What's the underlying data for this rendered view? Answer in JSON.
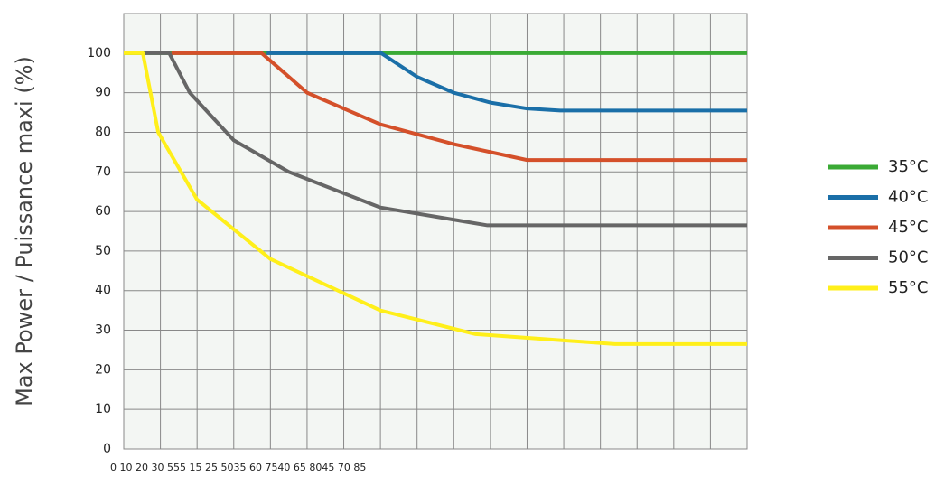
{
  "chart_data": {
    "type": "line",
    "y_label": "Max Power / Puissance maxi (%)",
    "x_tick_text": "0  10 20 30 555 15 25 5035 60 7540 65 8045 70 85",
    "xlim": [
      0,
      85
    ],
    "xticks": [
      0,
      5,
      10,
      15,
      20,
      25,
      30,
      35,
      40,
      45,
      50,
      55,
      60,
      65,
      70,
      75,
      80,
      85
    ],
    "ylim": [
      0,
      110
    ],
    "yticks": [
      0,
      10,
      20,
      30,
      40,
      50,
      60,
      70,
      80,
      90,
      100
    ],
    "grid": true,
    "series": [
      {
        "name": "35°C",
        "color": "#3aaa35",
        "x": [
          0,
          85
        ],
        "values": [
          100,
          100
        ]
      },
      {
        "name": "40°C",
        "color": "#1a6fa8",
        "x": [
          19.5,
          35.1,
          40,
          45,
          50,
          55,
          59.5,
          85
        ],
        "values": [
          100,
          100,
          94,
          90,
          87.5,
          86,
          85.5,
          85.5
        ]
      },
      {
        "name": "45°C",
        "color": "#d4502a",
        "x": [
          6.5,
          18.8,
          25,
          35,
          45,
          55,
          85
        ],
        "values": [
          100,
          100,
          90,
          82,
          77,
          73,
          73
        ]
      },
      {
        "name": "50°C",
        "color": "#666666",
        "x": [
          2.8,
          6.2,
          9,
          15,
          22.5,
          35,
          49.6,
          85
        ],
        "values": [
          100,
          100,
          90,
          78,
          70,
          61,
          56.5,
          56.5
        ]
      },
      {
        "name": "55°C",
        "color": "#ffef1a",
        "x": [
          0,
          2.6,
          4.7,
          10,
          20,
          35,
          48,
          67,
          85
        ],
        "values": [
          100,
          100,
          80,
          63,
          48,
          35,
          29,
          26.5,
          26.5
        ]
      }
    ]
  }
}
